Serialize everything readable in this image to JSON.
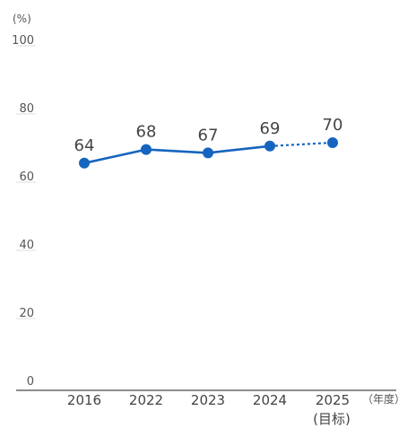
{
  "chart_data": {
    "type": "line",
    "y_unit": "(%)",
    "x_unit": "（年度）",
    "target_label": "(目标)",
    "categories": [
      "2016",
      "2022",
      "2023",
      "2024",
      "2025"
    ],
    "values": [
      64,
      68,
      67,
      69,
      70
    ],
    "value_labels": [
      "64",
      "68",
      "67",
      "69",
      "70"
    ],
    "projected_from_index": 3,
    "ylim": [
      0,
      100
    ],
    "yticks": [
      "100",
      "80",
      "60",
      "40",
      "20",
      "0"
    ],
    "ytick_values": [
      100,
      80,
      60,
      40,
      20,
      0
    ],
    "grid": false,
    "colors": {
      "line": "#1565c0",
      "marker": "#1565c0"
    }
  }
}
